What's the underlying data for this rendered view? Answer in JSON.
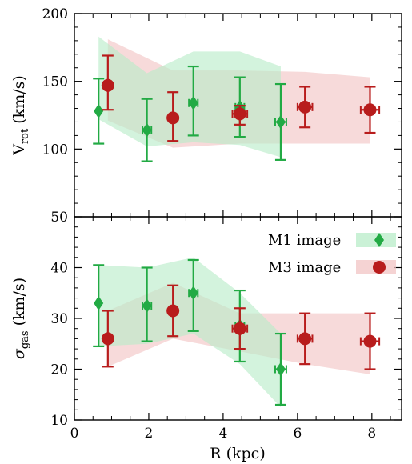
{
  "chart_data": [
    {
      "type": "scatter",
      "panel": "top",
      "title": "",
      "ylabel_main": "V",
      "ylabel_sub": "rot",
      "ylabel_unit": " (km/s)",
      "xlim": [
        0,
        8.8
      ],
      "ylim": [
        50,
        200
      ],
      "yticks": [
        50,
        100,
        150,
        200
      ],
      "xticks": [
        0,
        2,
        4,
        6,
        8
      ],
      "series": [
        {
          "name": "M1 image",
          "color": "#22aa44",
          "band_color": "#b8ecc8",
          "marker": "diamond",
          "x": [
            0.65,
            1.95,
            3.2,
            4.45,
            5.55
          ],
          "y": [
            128,
            114,
            134,
            131,
            120
          ],
          "yerr": [
            [
              104,
              152
            ],
            [
              91,
              137
            ],
            [
              110,
              161
            ],
            [
              109,
              153
            ],
            [
              92,
              148
            ]
          ],
          "xerr": [
            0,
            0.12,
            0.12,
            0.12,
            0.15
          ],
          "band_x": [
            0.65,
            1.95,
            3.2,
            4.45,
            5.55
          ],
          "band_upper": [
            183,
            156,
            172,
            172,
            161
          ],
          "band_lower": [
            122,
            102,
            105,
            103,
            94
          ]
        },
        {
          "name": "M3 image",
          "color": "#b81c1c",
          "band_color": "#f2c4c4",
          "marker": "circle",
          "x": [
            0.9,
            2.65,
            4.45,
            6.2,
            7.95
          ],
          "y": [
            147,
            123,
            126,
            131,
            129
          ],
          "yerr": [
            [
              129,
              169
            ],
            [
              106,
              142
            ],
            [
              118,
              132
            ],
            [
              116,
              146
            ],
            [
              112,
              146
            ]
          ],
          "xerr": [
            0,
            0,
            0.2,
            0.2,
            0.25
          ],
          "band_x": [
            0.9,
            2.65,
            4.45,
            6.2,
            7.95
          ],
          "band_upper": [
            181,
            158,
            158,
            157,
            153
          ],
          "band_lower": [
            121,
            101,
            104,
            104,
            104
          ]
        }
      ]
    },
    {
      "type": "scatter",
      "panel": "bottom",
      "title": "",
      "xlabel": "R (kpc)",
      "ylabel_main": "σ",
      "ylabel_sub": "gas",
      "ylabel_unit": " (km/s)",
      "xlim": [
        0,
        8.8
      ],
      "ylim": [
        10,
        50
      ],
      "yticks": [
        10,
        20,
        30,
        40
      ],
      "xticks": [
        0,
        2,
        4,
        6,
        8
      ],
      "legend_position": "top-right",
      "series": [
        {
          "name": "M1 image",
          "color": "#22aa44",
          "band_color": "#b8ecc8",
          "marker": "diamond",
          "x": [
            0.65,
            1.95,
            3.2,
            4.45,
            5.55
          ],
          "y": [
            33,
            32.5,
            35,
            28.5,
            20
          ],
          "yerr": [
            [
              24.5,
              40.5
            ],
            [
              25.5,
              40
            ],
            [
              27.5,
              41.5
            ],
            [
              21.5,
              35.5
            ],
            [
              13,
              27
            ]
          ],
          "xerr": [
            0,
            0.12,
            0.12,
            0.12,
            0.15
          ],
          "band_x": [
            0.65,
            1.95,
            3.2,
            4.45,
            5.55
          ],
          "band_upper": [
            40.5,
            40,
            42,
            35,
            27
          ],
          "band_lower": [
            24.5,
            25,
            27,
            21,
            12.5
          ]
        },
        {
          "name": "M3 image",
          "color": "#b81c1c",
          "band_color": "#f2c4c4",
          "marker": "circle",
          "x": [
            0.9,
            2.65,
            4.45,
            6.2,
            7.95
          ],
          "y": [
            26,
            31.5,
            28,
            26,
            25.5
          ],
          "yerr": [
            [
              20.5,
              31.5
            ],
            [
              26.5,
              36.5
            ],
            [
              24,
              32
            ],
            [
              21,
              31
            ],
            [
              20,
              31
            ]
          ],
          "xerr": [
            0,
            0,
            0.2,
            0.2,
            0.25
          ],
          "band_x": [
            0.9,
            2.65,
            4.45,
            6.2,
            7.95
          ],
          "band_upper": [
            31.5,
            37,
            31,
            31,
            31
          ],
          "band_lower": [
            20.5,
            26,
            23.5,
            21,
            19
          ]
        }
      ]
    }
  ]
}
